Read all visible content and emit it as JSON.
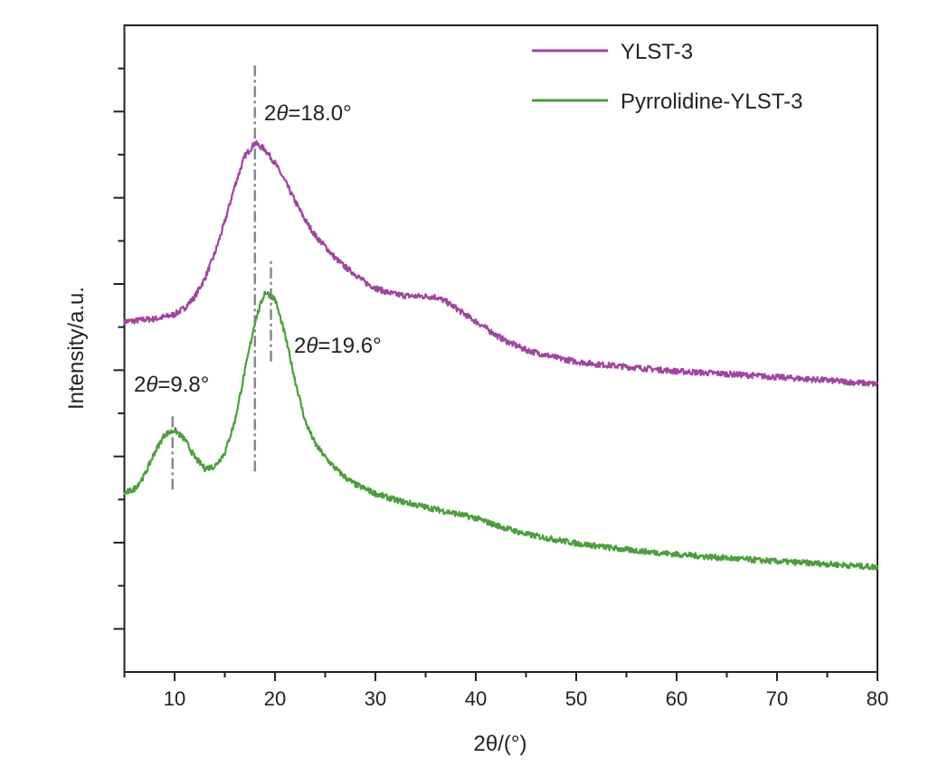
{
  "chart_data": {
    "type": "line",
    "title": "",
    "xlabel": "2θ/(°)",
    "ylabel": "Intensity/a.u.",
    "xlim": [
      5,
      80
    ],
    "ylim": [
      0,
      1000
    ],
    "xticks": [
      10,
      20,
      30,
      40,
      50,
      60,
      70,
      80
    ],
    "xtick_labels": [
      "10",
      "20",
      "30",
      "40",
      "50",
      "60",
      "70",
      "80"
    ],
    "yticks_labeled": false,
    "grid": false,
    "legend_position": "top-right",
    "series": [
      {
        "name": "YLST-3",
        "color": "#a044a0",
        "x": [
          5,
          6,
          7,
          8,
          9,
          10,
          11,
          12,
          13,
          14,
          15,
          16,
          17,
          18,
          19,
          20,
          21,
          22,
          23,
          24,
          25,
          26,
          27,
          28,
          29,
          30,
          31,
          32,
          33,
          34,
          35,
          36,
          37,
          38,
          39,
          40,
          41,
          42,
          43,
          44,
          45,
          46,
          47,
          48,
          49,
          50,
          52,
          55,
          60,
          65,
          70,
          75,
          80
        ],
        "y": [
          542,
          543,
          545,
          546,
          549,
          553,
          563,
          580,
          608,
          647,
          696,
          752,
          798,
          818,
          808,
          787,
          759,
          728,
          699,
          675,
          658,
          640,
          626,
          615,
          602,
          594,
          588,
          584,
          582,
          581,
          581,
          580,
          573,
          563,
          552,
          542,
          532,
          521,
          512,
          505,
          498,
          494,
          490,
          486,
          483,
          480,
          476,
          472,
          465,
          461,
          456,
          451,
          445
        ]
      },
      {
        "name": "Pyrrolidine-YLST-3",
        "color": "#4c9e3c",
        "x": [
          5,
          6,
          7,
          8,
          9,
          10,
          11,
          12,
          13,
          14,
          15,
          16,
          17,
          18,
          19,
          20,
          21,
          22,
          23,
          24,
          25,
          26,
          27,
          28,
          29,
          30,
          32,
          35,
          38,
          40,
          42,
          45,
          50,
          55,
          60,
          65,
          70,
          75,
          80
        ],
        "y": [
          276,
          283,
          304,
          339,
          367,
          374,
          360,
          332,
          315,
          318,
          339,
          388,
          465,
          542,
          588,
          577,
          521,
          451,
          388,
          353,
          332,
          315,
          301,
          290,
          283,
          276,
          266,
          255,
          245,
          238,
          227,
          213,
          199,
          189,
          182,
          176,
          171,
          167,
          162
        ]
      }
    ],
    "annotations": [
      {
        "text_prefix": "2",
        "symbol": "θ",
        "text_suffix": "=18.0°",
        "x": 18.0,
        "line_from": 310,
        "line_to": 940
      },
      {
        "text_prefix": "2",
        "symbol": "θ",
        "text_suffix": "=19.6°",
        "x": 19.6,
        "line_from": 480,
        "line_to": 640
      },
      {
        "text_prefix": "2",
        "symbol": "θ",
        "text_suffix": "=9.8°",
        "x": 9.8,
        "line_from": 282,
        "line_to": 400
      }
    ]
  }
}
